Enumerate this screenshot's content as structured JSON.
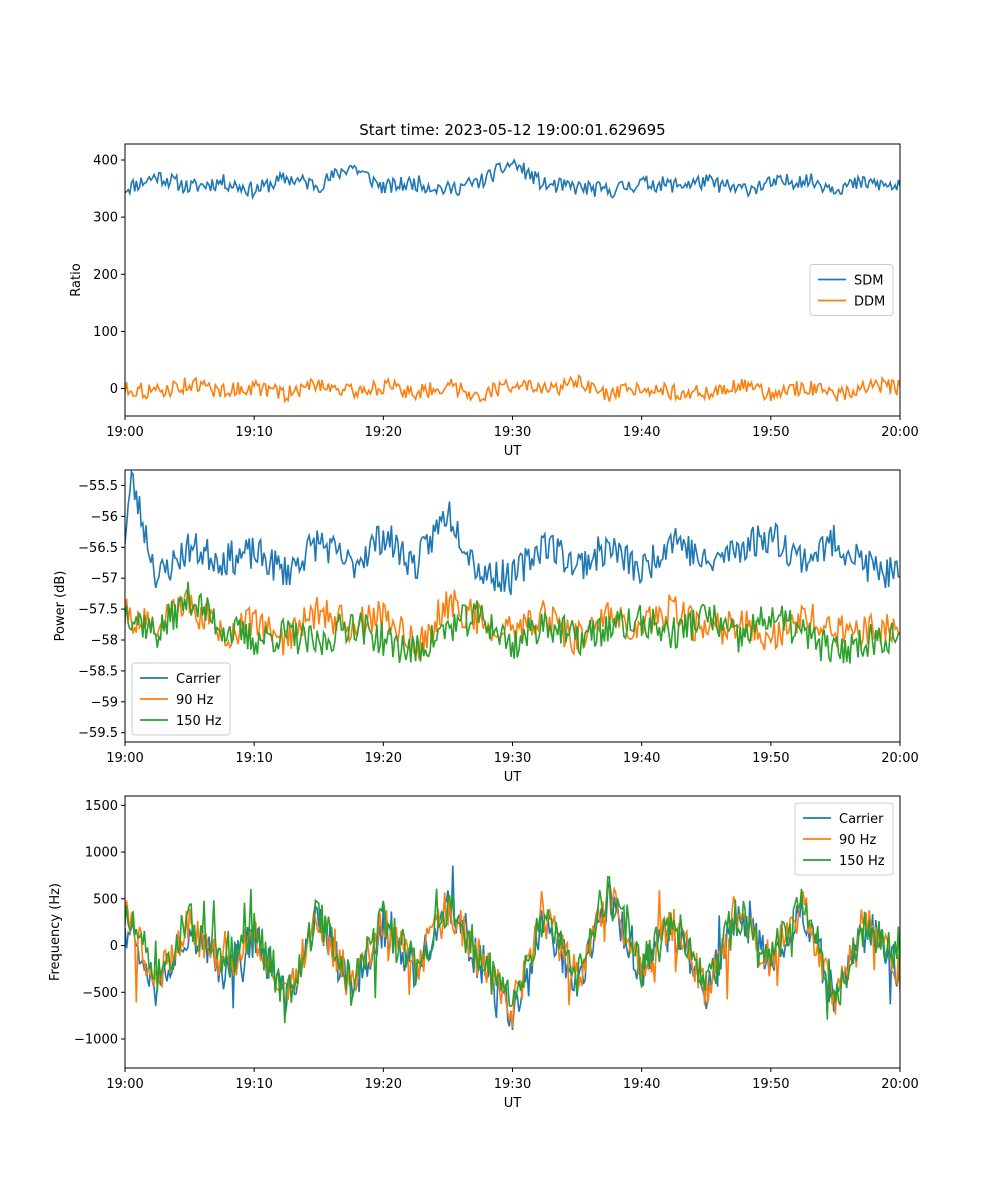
{
  "chart_data": [
    {
      "type": "line",
      "title": "Start time: 2023-05-12 19:00:01.629695",
      "xlabel": "UT",
      "ylabel": "Ratio",
      "xticks": [
        "19:00",
        "19:10",
        "19:20",
        "19:30",
        "19:40",
        "19:50",
        "20:00"
      ],
      "xlim": [
        "19:00",
        "20:00"
      ],
      "yticks": [
        0,
        100,
        200,
        300,
        400
      ],
      "ylim": [
        -48,
        428
      ],
      "legend_position": "center-right",
      "series": [
        {
          "name": "SDM",
          "color": "#1f77b4",
          "x_minutes": [
            0,
            2.5,
            5,
            7.5,
            10,
            12.5,
            15,
            17.5,
            20,
            22.5,
            25,
            27.5,
            30,
            32.5,
            35,
            37.5,
            40,
            42.5,
            45,
            47.5,
            50,
            52.5,
            55,
            57.5,
            60
          ],
          "values": [
            350,
            372,
            352,
            362,
            347,
            368,
            356,
            390,
            352,
            360,
            348,
            362,
            395,
            356,
            352,
            346,
            360,
            356,
            362,
            348,
            358,
            366,
            352,
            360,
            352
          ]
        },
        {
          "name": "DDM",
          "color": "#ff7f0e",
          "x_minutes": [
            0,
            2.5,
            5,
            7.5,
            10,
            12.5,
            15,
            17.5,
            20,
            22.5,
            25,
            27.5,
            30,
            32.5,
            35,
            37.5,
            40,
            42.5,
            45,
            47.5,
            50,
            52.5,
            55,
            57.5,
            60
          ],
          "values": [
            0,
            -6,
            8,
            -4,
            2,
            -10,
            10,
            -6,
            4,
            -8,
            6,
            -12,
            8,
            -4,
            10,
            -14,
            4,
            -6,
            -8,
            6,
            -10,
            4,
            -12,
            6,
            2
          ]
        }
      ]
    },
    {
      "type": "line",
      "title": "",
      "xlabel": "UT",
      "ylabel": "Power (dB)",
      "xticks": [
        "19:00",
        "19:10",
        "19:20",
        "19:30",
        "19:40",
        "19:50",
        "20:00"
      ],
      "xlim": [
        "19:00",
        "20:00"
      ],
      "yticks": [
        -55.5,
        -56.0,
        -56.5,
        -57.0,
        -57.5,
        -58.0,
        -58.5,
        -59.0,
        -59.5
      ],
      "ylim": [
        -59.65,
        -55.25
      ],
      "legend_position": "lower-left",
      "series": [
        {
          "name": "Carrier",
          "color": "#1f77b4",
          "x_minutes": [
            0,
            0.5,
            2.5,
            5,
            7.5,
            10,
            12.5,
            15,
            17.5,
            20,
            22.5,
            25,
            27.5,
            30,
            32.5,
            35,
            37.5,
            40,
            42.5,
            45,
            47.5,
            50,
            52.5,
            55,
            57.5,
            60
          ],
          "values": [
            -56.3,
            -55.4,
            -57.0,
            -56.5,
            -56.7,
            -56.6,
            -56.9,
            -56.4,
            -56.8,
            -56.3,
            -56.8,
            -55.9,
            -56.9,
            -57.0,
            -56.4,
            -56.8,
            -56.5,
            -56.9,
            -56.3,
            -56.8,
            -56.5,
            -56.3,
            -56.7,
            -56.4,
            -56.8,
            -57.0
          ]
        },
        {
          "name": "90 Hz",
          "color": "#ff7f0e",
          "x_minutes": [
            0,
            2.5,
            5,
            7.5,
            10,
            12.5,
            15,
            17.5,
            20,
            22.5,
            25,
            27.5,
            30,
            32.5,
            35,
            37.5,
            40,
            42.5,
            45,
            47.5,
            50,
            52.5,
            55,
            57.5,
            60
          ],
          "values": [
            -57.6,
            -57.8,
            -57.4,
            -57.9,
            -57.7,
            -58.0,
            -57.5,
            -57.8,
            -57.6,
            -58.1,
            -57.4,
            -57.7,
            -57.9,
            -57.6,
            -58.0,
            -57.6,
            -57.8,
            -57.5,
            -57.9,
            -57.7,
            -58.0,
            -57.6,
            -57.9,
            -57.8,
            -57.9
          ]
        },
        {
          "name": "150 Hz",
          "color": "#2ca02c",
          "x_minutes": [
            0,
            2.5,
            5,
            7.5,
            10,
            12.5,
            15,
            17.5,
            20,
            22.5,
            25,
            27.5,
            30,
            32.5,
            35,
            37.5,
            40,
            42.5,
            45,
            47.5,
            50,
            52.5,
            55,
            57.5,
            60
          ],
          "values": [
            -57.5,
            -57.9,
            -57.3,
            -57.8,
            -58.0,
            -57.9,
            -58.1,
            -57.7,
            -58.0,
            -58.2,
            -57.8,
            -57.6,
            -58.1,
            -57.7,
            -58.0,
            -57.8,
            -57.7,
            -57.9,
            -57.6,
            -58.0,
            -57.6,
            -57.9,
            -58.2,
            -58.0,
            -57.9
          ]
        }
      ]
    },
    {
      "type": "line",
      "title": "",
      "xlabel": "UT",
      "ylabel": "Frequency (Hz)",
      "xticks": [
        "19:00",
        "19:10",
        "19:20",
        "19:30",
        "19:40",
        "19:50",
        "20:00"
      ],
      "xlim": [
        "19:00",
        "20:00"
      ],
      "yticks": [
        1500,
        1000,
        500,
        0,
        -500,
        -1000
      ],
      "ylim": [
        -1310,
        1600
      ],
      "legend_position": "upper-right",
      "series": [
        {
          "name": "Carrier",
          "color": "#1f77b4",
          "x_minutes": [
            0,
            2.5,
            5,
            7.5,
            10,
            12.5,
            15,
            17.5,
            20,
            22.5,
            25,
            27.5,
            30,
            32.5,
            35,
            37.5,
            40,
            42.5,
            45,
            47.5,
            50,
            52.5,
            55,
            57.5,
            60
          ],
          "values": [
            300,
            -400,
            200,
            -300,
            100,
            -600,
            300,
            -500,
            200,
            -300,
            400,
            -200,
            -700,
            300,
            -400,
            500,
            -300,
            200,
            -500,
            300,
            -200,
            400,
            -600,
            200,
            -300
          ]
        },
        {
          "name": "90 Hz",
          "color": "#ff7f0e",
          "x_minutes": [
            0,
            2.5,
            5,
            7.5,
            10,
            12.5,
            15,
            17.5,
            20,
            22.5,
            25,
            27.5,
            30,
            32.5,
            35,
            37.5,
            40,
            42.5,
            45,
            47.5,
            50,
            52.5,
            55,
            57.5,
            60
          ],
          "values": [
            320,
            -370,
            230,
            -270,
            130,
            -570,
            330,
            -470,
            230,
            -270,
            430,
            -170,
            -670,
            330,
            -370,
            530,
            -270,
            230,
            -470,
            330,
            -170,
            430,
            -570,
            230,
            -270
          ]
        },
        {
          "name": "150 Hz",
          "color": "#2ca02c",
          "x_minutes": [
            0,
            2.5,
            5,
            7.5,
            10,
            12.5,
            15,
            17.5,
            20,
            22.5,
            25,
            27.5,
            30,
            32.5,
            35,
            37.5,
            40,
            42.5,
            45,
            47.5,
            50,
            52.5,
            55,
            57.5,
            60
          ],
          "values": [
            350,
            -340,
            260,
            -240,
            160,
            -540,
            360,
            -440,
            260,
            -240,
            460,
            -140,
            -640,
            360,
            -340,
            560,
            -240,
            260,
            -440,
            360,
            -140,
            460,
            -540,
            260,
            -240
          ]
        }
      ]
    }
  ]
}
